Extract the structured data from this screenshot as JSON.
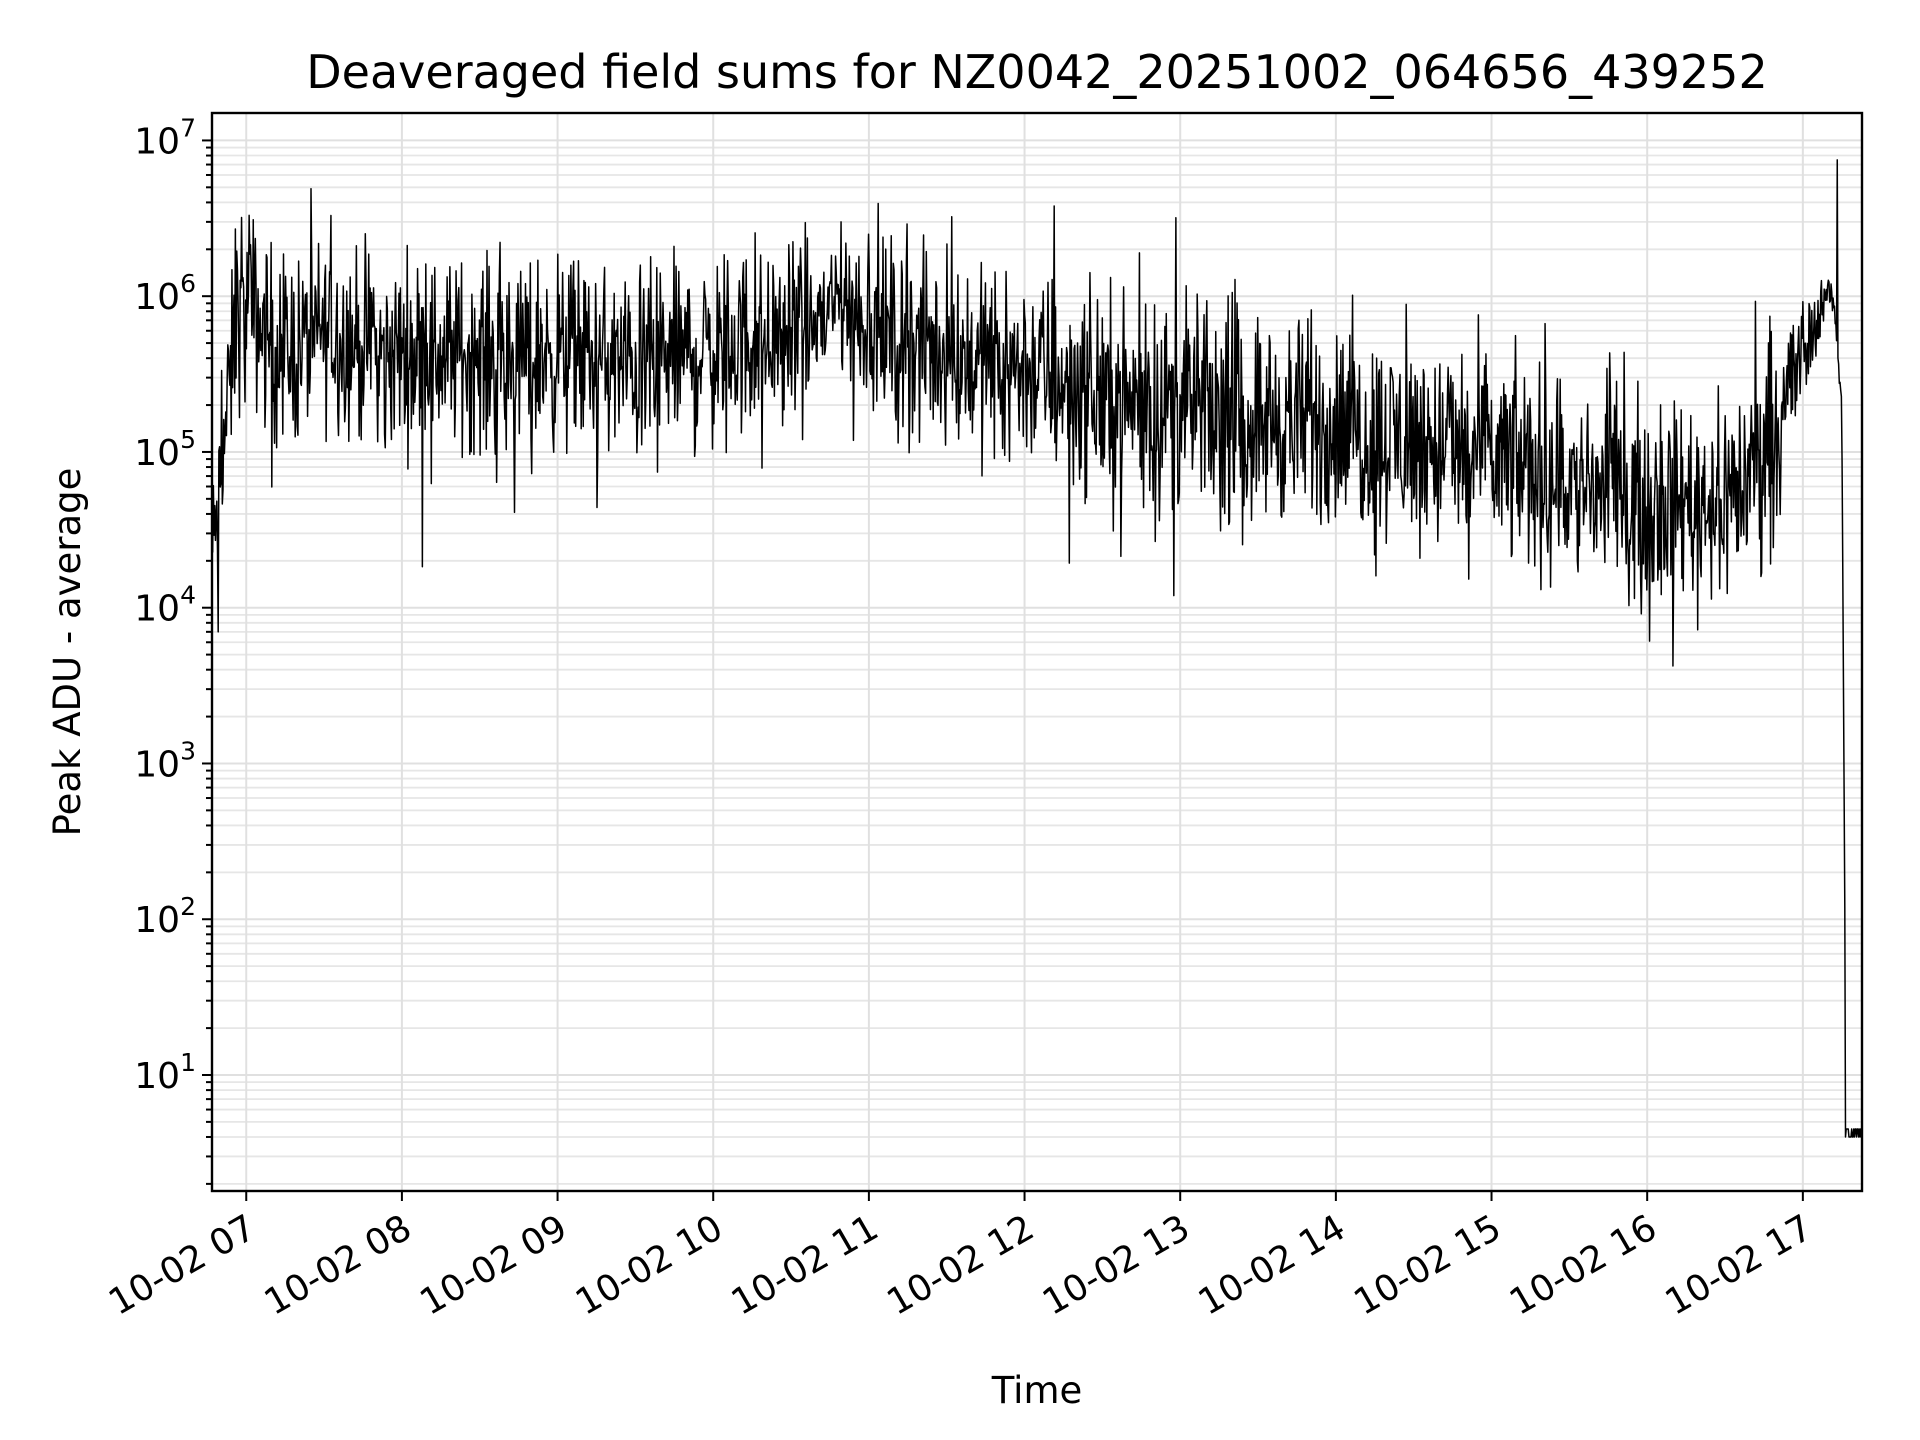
{
  "chart_data": {
    "type": "line",
    "title": "Deaveraged field sums for NZ0042_20251002_064656_439252",
    "xlabel": "Time",
    "ylabel": "Peak ADU - average",
    "yscale": "log",
    "ylim": [
      1.8,
      15000000
    ],
    "xlim_hours": [
      6.78,
      17.38
    ],
    "grid": "both",
    "x_tick_labels": [
      {
        "hour": 7,
        "label": "10-02 07"
      },
      {
        "hour": 8,
        "label": "10-02 08"
      },
      {
        "hour": 9,
        "label": "10-02 09"
      },
      {
        "hour": 10,
        "label": "10-02 10"
      },
      {
        "hour": 11,
        "label": "10-02 11"
      },
      {
        "hour": 12,
        "label": "10-02 12"
      },
      {
        "hour": 13,
        "label": "10-02 13"
      },
      {
        "hour": 14,
        "label": "10-02 14"
      },
      {
        "hour": 15,
        "label": "10-02 15"
      },
      {
        "hour": 16,
        "label": "10-02 16"
      },
      {
        "hour": 17,
        "label": "10-02 17"
      }
    ],
    "y_tick_labels": [
      {
        "exp": 1,
        "base": "10",
        "sup": "1"
      },
      {
        "exp": 2,
        "base": "10",
        "sup": "2"
      },
      {
        "exp": 3,
        "base": "10",
        "sup": "3"
      },
      {
        "exp": 4,
        "base": "10",
        "sup": "4"
      },
      {
        "exp": 5,
        "base": "10",
        "sup": "5"
      },
      {
        "exp": 6,
        "base": "10",
        "sup": "6"
      },
      {
        "exp": 7,
        "base": "10",
        "sup": "7"
      }
    ],
    "series": [
      {
        "name": "field sums",
        "color": "#000000",
        "x_hours": [
          6.78,
          6.82,
          6.85,
          6.9,
          6.95,
          7.0,
          7.05,
          7.1,
          7.2,
          7.3,
          7.4,
          7.5,
          7.6,
          7.7,
          7.8,
          7.9,
          8.0,
          8.2,
          8.4,
          8.6,
          8.8,
          9.0,
          9.2,
          9.4,
          9.6,
          9.8,
          10.0,
          10.2,
          10.4,
          10.6,
          10.8,
          11.0,
          11.2,
          11.4,
          11.6,
          11.8,
          12.0,
          12.2,
          12.4,
          12.6,
          12.8,
          13.0,
          13.2,
          13.4,
          13.6,
          13.8,
          14.0,
          14.2,
          14.4,
          14.6,
          14.8,
          15.0,
          15.2,
          15.4,
          15.6,
          15.8,
          16.0,
          16.2,
          16.4,
          16.6,
          16.7,
          16.8,
          16.9,
          17.0,
          17.1,
          17.15,
          17.2,
          17.25,
          17.27,
          17.3,
          17.38
        ],
        "median": [
          20000,
          50000,
          100000,
          300000,
          900000,
          700000,
          800000,
          600000,
          500000,
          450000,
          500000,
          600000,
          550000,
          500000,
          450000,
          400000,
          450000,
          420000,
          430000,
          400000,
          420000,
          430000,
          400000,
          350000,
          380000,
          420000,
          450000,
          500000,
          550000,
          600000,
          900000,
          650000,
          500000,
          450000,
          400000,
          380000,
          350000,
          300000,
          250000,
          220000,
          200000,
          200000,
          180000,
          170000,
          160000,
          150000,
          140000,
          130000,
          120000,
          110000,
          100000,
          90000,
          80000,
          70000,
          60000,
          55000,
          50000,
          50000,
          50000,
          60000,
          80000,
          150000,
          250000,
          400000,
          800000,
          1100000,
          900000,
          200000,
          100,
          4,
          4
        ],
        "spread_decades": [
          0.5,
          0.4,
          0.4,
          0.5,
          0.6,
          0.6,
          0.55,
          0.55,
          0.55,
          0.55,
          0.55,
          0.55,
          0.55,
          0.55,
          0.55,
          0.55,
          0.55,
          0.55,
          0.55,
          0.55,
          0.55,
          0.55,
          0.55,
          0.55,
          0.55,
          0.55,
          0.55,
          0.55,
          0.5,
          0.5,
          0.45,
          0.5,
          0.55,
          0.55,
          0.55,
          0.55,
          0.55,
          0.6,
          0.6,
          0.6,
          0.6,
          0.6,
          0.6,
          0.6,
          0.6,
          0.6,
          0.6,
          0.6,
          0.6,
          0.6,
          0.6,
          0.6,
          0.6,
          0.6,
          0.6,
          0.6,
          0.55,
          0.55,
          0.55,
          0.6,
          0.6,
          0.6,
          0.5,
          0.4,
          0.2,
          0.1,
          0.1,
          0.05,
          0,
          0,
          0
        ],
        "samples": 2400,
        "peaks": [
          {
            "hour": 6.93,
            "value": 2700000
          },
          {
            "hour": 6.97,
            "value": 3200000
          },
          {
            "hour": 7.02,
            "value": 3300000
          },
          {
            "hour": 10.82,
            "value": 3000000
          },
          {
            "hour": 11.0,
            "value": 2500000
          },
          {
            "hour": 17.22,
            "value": 7500000
          }
        ],
        "dips": [
          {
            "hour": 6.82,
            "value": 7000
          },
          {
            "hour": 15.55,
            "value": 20000
          },
          {
            "hour": 16.0,
            "value": 21000
          }
        ]
      }
    ]
  }
}
